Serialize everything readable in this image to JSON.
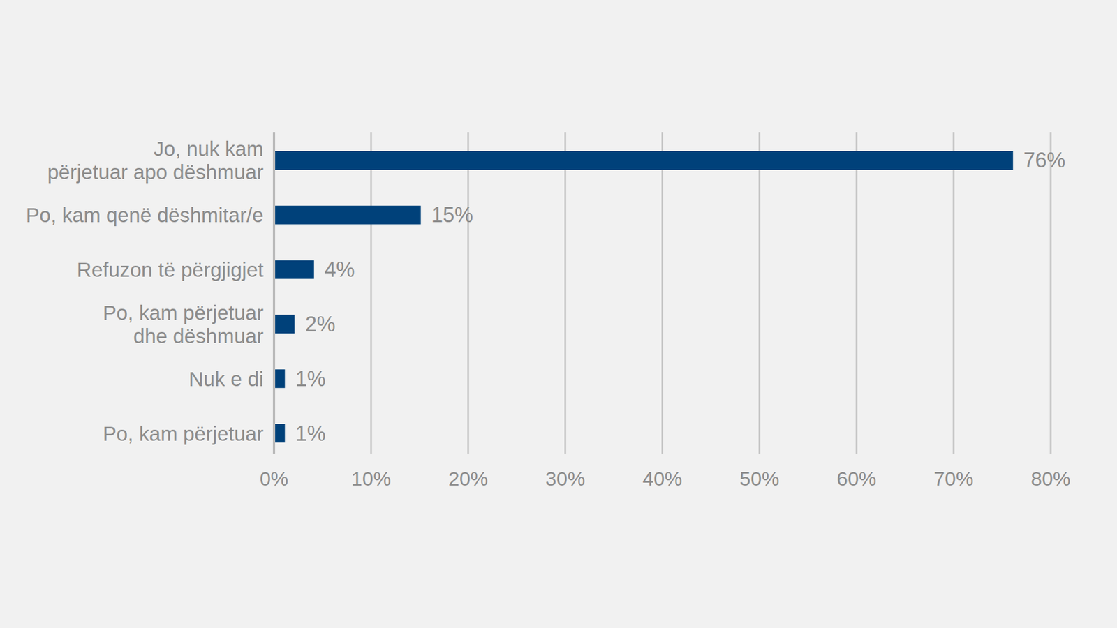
{
  "chart_data": {
    "type": "bar",
    "orientation": "horizontal",
    "categories": [
      "Jo, nuk kam\npërjetuar apo dëshmuar",
      "Po, kam qenë dëshmitar/e",
      "Refuzon të përgjigjet",
      "Po, kam përjetuar\ndhe dëshmuar",
      "Nuk e di",
      "Po, kam përjetuar"
    ],
    "values": [
      76,
      15,
      4,
      2,
      1,
      1
    ],
    "value_labels": [
      "76%",
      "15%",
      "4%",
      "2%",
      "1%",
      "1%"
    ],
    "color": "#00417a",
    "xlim": [
      0,
      80
    ],
    "xticks": [
      {
        "value": 0,
        "label": "0%"
      },
      {
        "value": 10,
        "label": "10%"
      },
      {
        "value": 20,
        "label": "20%"
      },
      {
        "value": 30,
        "label": "30%"
      },
      {
        "value": 40,
        "label": "40%"
      },
      {
        "value": 50,
        "label": "50%"
      },
      {
        "value": 60,
        "label": "60%"
      },
      {
        "value": 70,
        "label": "70%"
      },
      {
        "value": 80,
        "label": "80%"
      }
    ],
    "grid": true,
    "data_labels": true
  }
}
